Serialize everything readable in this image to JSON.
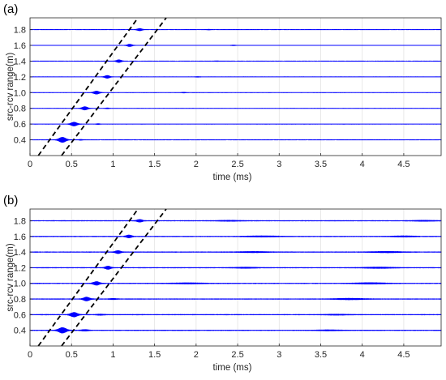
{
  "chart_data": [
    {
      "type": "line",
      "panel_label": "(a)",
      "xlabel": "time (ms)",
      "ylabel": "src-rcv range(m)",
      "xlim": [
        0,
        4.95
      ],
      "ylim": [
        0.2,
        1.95
      ],
      "xticks": [
        "0",
        "0.5",
        "1",
        "1.5",
        "2",
        "2.5",
        "3",
        "3.5",
        "4",
        "4.5"
      ],
      "yticks": [
        "0.4",
        "0.6",
        "0.8",
        "1.0",
        "1.2",
        "1.4",
        "1.6",
        "1.8"
      ],
      "grid": true,
      "trace_color": "#0000ff",
      "noise_level": 0.01,
      "traces": [
        {
          "range": 0.4,
          "arrivals": [
            {
              "t": 0.39,
              "amp": 0.38,
              "w": 0.1
            },
            {
              "t": 0.61,
              "amp": 0.05,
              "w": 0.05
            }
          ]
        },
        {
          "range": 0.6,
          "arrivals": [
            {
              "t": 0.53,
              "amp": 0.28,
              "w": 0.09
            },
            {
              "t": 0.82,
              "amp": 0.05,
              "w": 0.05
            }
          ]
        },
        {
          "range": 0.8,
          "arrivals": [
            {
              "t": 0.66,
              "amp": 0.24,
              "w": 0.08
            },
            {
              "t": 0.93,
              "amp": 0.05,
              "w": 0.05
            }
          ]
        },
        {
          "range": 1.0,
          "arrivals": [
            {
              "t": 0.8,
              "amp": 0.22,
              "w": 0.08
            },
            {
              "t": 1.85,
              "amp": 0.04,
              "w": 0.06
            }
          ]
        },
        {
          "range": 1.2,
          "arrivals": [
            {
              "t": 0.93,
              "amp": 0.2,
              "w": 0.07
            },
            {
              "t": 2.02,
              "amp": 0.03,
              "w": 0.06
            }
          ]
        },
        {
          "range": 1.4,
          "arrivals": [
            {
              "t": 1.07,
              "amp": 0.19,
              "w": 0.07
            },
            {
              "t": 2.25,
              "amp": 0.03,
              "w": 0.06
            }
          ]
        },
        {
          "range": 1.6,
          "arrivals": [
            {
              "t": 1.2,
              "amp": 0.17,
              "w": 0.07
            },
            {
              "t": 2.45,
              "amp": 0.03,
              "w": 0.06
            }
          ]
        },
        {
          "range": 1.8,
          "arrivals": [
            {
              "t": 1.32,
              "amp": 0.16,
              "w": 0.07
            },
            {
              "t": 2.15,
              "amp": 0.03,
              "w": 0.06
            }
          ]
        }
      ],
      "guide_lines": [
        {
          "t_at_0.2": 0.1,
          "t_at_1.95": 1.3
        },
        {
          "t_at_0.2": 0.38,
          "t_at_1.95": 1.64
        }
      ]
    },
    {
      "type": "line",
      "panel_label": "(b)",
      "xlabel": "time (ms)",
      "ylabel": "src-rcv range(m)",
      "xlim": [
        0,
        4.95
      ],
      "ylim": [
        0.2,
        1.95
      ],
      "xticks": [
        "0",
        "0.5",
        "1",
        "1.5",
        "2",
        "2.5",
        "3",
        "3.5",
        "4",
        "4.5"
      ],
      "yticks": [
        "0.4",
        "0.6",
        "0.8",
        "1.0",
        "1.2",
        "1.4",
        "1.6",
        "1.8"
      ],
      "grid": true,
      "trace_color": "#0000ff",
      "noise_level": 0.025,
      "traces": [
        {
          "range": 0.4,
          "arrivals": [
            {
              "t": 0.39,
              "amp": 0.4,
              "w": 0.11
            },
            {
              "t": 0.66,
              "amp": 0.09,
              "w": 0.1
            },
            {
              "t": 3.6,
              "amp": 0.05,
              "w": 0.3
            }
          ]
        },
        {
          "range": 0.6,
          "arrivals": [
            {
              "t": 0.53,
              "amp": 0.32,
              "w": 0.1
            },
            {
              "t": 0.85,
              "amp": 0.07,
              "w": 0.1
            },
            {
              "t": 3.7,
              "amp": 0.05,
              "w": 0.3
            }
          ]
        },
        {
          "range": 0.8,
          "arrivals": [
            {
              "t": 0.68,
              "amp": 0.27,
              "w": 0.09
            },
            {
              "t": 1.0,
              "amp": 0.06,
              "w": 0.1
            },
            {
              "t": 3.85,
              "amp": 0.08,
              "w": 0.4
            }
          ]
        },
        {
          "range": 1.0,
          "arrivals": [
            {
              "t": 0.8,
              "amp": 0.25,
              "w": 0.09
            },
            {
              "t": 1.9,
              "amp": 0.06,
              "w": 0.4
            },
            {
              "t": 4.1,
              "amp": 0.08,
              "w": 0.4
            }
          ]
        },
        {
          "range": 1.2,
          "arrivals": [
            {
              "t": 0.94,
              "amp": 0.22,
              "w": 0.08
            },
            {
              "t": 2.6,
              "amp": 0.06,
              "w": 0.3
            },
            {
              "t": 4.2,
              "amp": 0.07,
              "w": 0.4
            }
          ]
        },
        {
          "range": 1.4,
          "arrivals": [
            {
              "t": 1.06,
              "amp": 0.21,
              "w": 0.08
            },
            {
              "t": 2.7,
              "amp": 0.06,
              "w": 0.4
            },
            {
              "t": 4.3,
              "amp": 0.07,
              "w": 0.4
            }
          ]
        },
        {
          "range": 1.6,
          "arrivals": [
            {
              "t": 1.19,
              "amp": 0.2,
              "w": 0.08
            },
            {
              "t": 2.8,
              "amp": 0.06,
              "w": 0.4
            },
            {
              "t": 4.5,
              "amp": 0.06,
              "w": 0.3
            }
          ]
        },
        {
          "range": 1.8,
          "arrivals": [
            {
              "t": 1.32,
              "amp": 0.18,
              "w": 0.08
            },
            {
              "t": 2.4,
              "amp": 0.05,
              "w": 0.3
            },
            {
              "t": 4.75,
              "amp": 0.05,
              "w": 0.3
            }
          ]
        }
      ],
      "guide_lines": [
        {
          "t_at_0.2": 0.1,
          "t_at_1.95": 1.3
        },
        {
          "t_at_0.2": 0.38,
          "t_at_1.95": 1.64
        }
      ]
    }
  ]
}
